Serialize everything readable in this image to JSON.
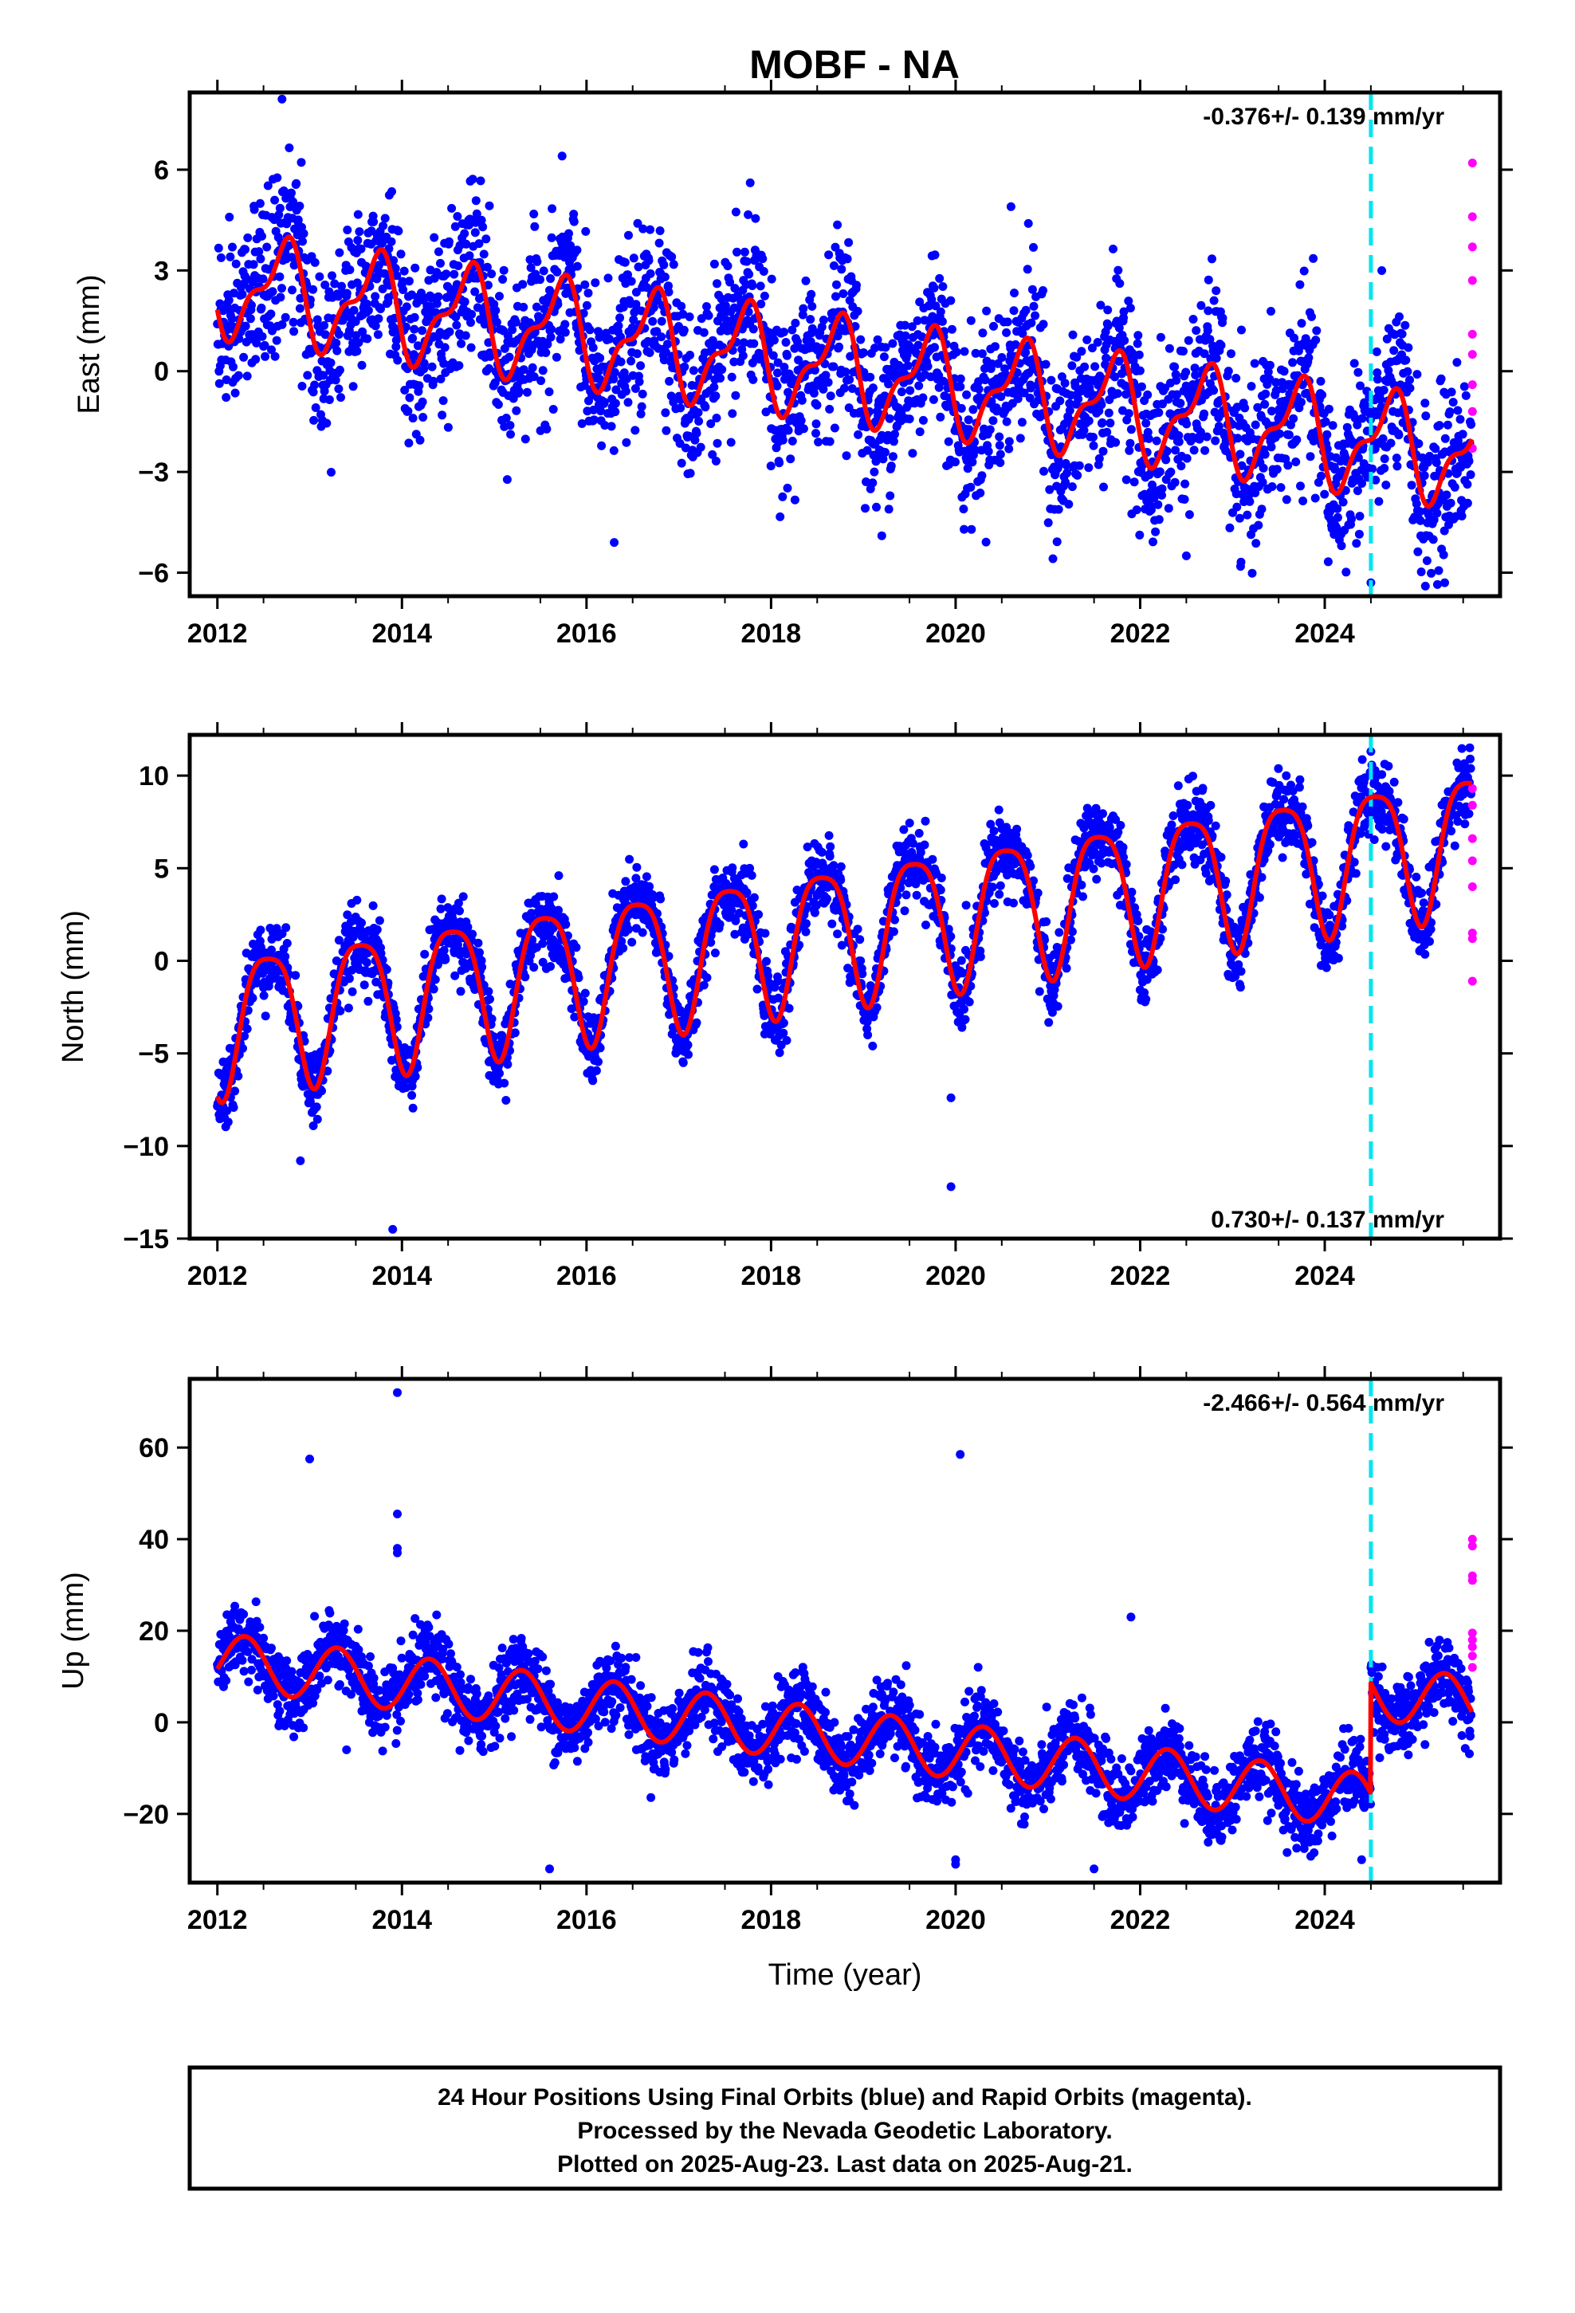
{
  "chart_data": [
    {
      "type": "scatter",
      "id": "east",
      "title": "MOBF - NA",
      "xlabel": "",
      "ylabel": "East (mm)",
      "xlim": [
        2011.7,
        2025.9
      ],
      "ylim": [
        -6.7,
        8.3
      ],
      "xticks": [
        2012,
        2014,
        2016,
        2018,
        2020,
        2022,
        2024
      ],
      "yticks": [
        -6,
        -3,
        0,
        3,
        6
      ],
      "rate_label": "-0.376+/- 0.139 mm/yr",
      "event_line_x": 2024.5,
      "model": {
        "trend": -0.376,
        "trend_ref": 2012.0,
        "offset": 2.6,
        "annual_amp": 1.35,
        "annual_phase": 2012.45,
        "semi_amp": 0.6,
        "semi_phase": 2012.2,
        "step": 0.0
      },
      "scatter_sd": 1.25,
      "outliers": [
        [
          2012.7,
          8.1
        ],
        [
          2016.3,
          -5.1
        ],
        [
          2019.2,
          -4.9
        ],
        [
          2020.6,
          4.9
        ],
        [
          2022.5,
          -5.5
        ],
        [
          2024.5,
          -6.3
        ],
        [
          2025.3,
          -6.3
        ]
      ],
      "rapid_points": [
        [
          2025.6,
          6.2
        ],
        [
          2025.6,
          4.6
        ],
        [
          2025.6,
          3.7
        ],
        [
          2025.6,
          2.7
        ],
        [
          2025.6,
          1.1
        ],
        [
          2025.6,
          0.5
        ],
        [
          2025.6,
          -0.4
        ],
        [
          2025.6,
          -1.2
        ],
        [
          2025.6,
          -2.3
        ]
      ],
      "label_position": "top-right"
    },
    {
      "type": "scatter",
      "id": "north",
      "title": "",
      "xlabel": "",
      "ylabel": "North (mm)",
      "xlim": [
        2011.7,
        2025.9
      ],
      "ylim": [
        -15,
        12.2
      ],
      "xticks": [
        2012,
        2014,
        2016,
        2018,
        2020,
        2022,
        2024
      ],
      "yticks": [
        -15,
        -10,
        -5,
        0,
        5,
        10
      ],
      "rate_label": "0.730+/- 0.137 mm/yr",
      "event_line_x": 2024.5,
      "model": {
        "trend": 0.73,
        "trend_ref": 2012.0,
        "offset": -3.2,
        "annual_amp": 3.7,
        "annual_phase": 2012.3,
        "semi_amp": 0.8,
        "semi_phase": 2012.18,
        "step": 0.0
      },
      "scatter_sd": 1.0,
      "outliers": [
        [
          2013.9,
          -14.5
        ],
        [
          2019.95,
          -12.2
        ],
        [
          2019.95,
          -7.4
        ],
        [
          2012.9,
          -10.8
        ],
        [
          2024.5,
          11.3
        ]
      ],
      "rapid_points": [
        [
          2025.6,
          9.3
        ],
        [
          2025.6,
          8.4
        ],
        [
          2025.6,
          6.6
        ],
        [
          2025.6,
          5.4
        ],
        [
          2025.6,
          4.0
        ],
        [
          2025.6,
          1.5
        ],
        [
          2025.6,
          1.2
        ],
        [
          2025.6,
          -1.1
        ]
      ],
      "label_position": "bottom-right"
    },
    {
      "type": "scatter",
      "id": "up",
      "title": "",
      "xlabel": "Time (year)",
      "ylabel": "Up (mm)",
      "xlim": [
        2011.7,
        2025.9
      ],
      "ylim": [
        -35,
        75
      ],
      "xticks": [
        2012,
        2014,
        2016,
        2018,
        2020,
        2022,
        2024
      ],
      "yticks": [
        -20,
        0,
        20,
        40,
        60
      ],
      "rate_label": "-2.466+/- 0.564 mm/yr",
      "event_line_x": 2024.5,
      "model": {
        "trend": -2.466,
        "trend_ref": 2012.0,
        "offset": 13.5,
        "annual_amp": 6.0,
        "annual_phase": 2012.05,
        "semi_amp": 0.0,
        "semi_phase": 2012.0,
        "step": 24.0
      },
      "scatter_sd": 4.0,
      "outliers": [
        [
          2013.0,
          57.5
        ],
        [
          2013.95,
          72.0
        ],
        [
          2013.95,
          45.5
        ],
        [
          2013.95,
          38.0
        ],
        [
          2013.95,
          37.0
        ],
        [
          2020.05,
          58.5
        ],
        [
          2015.6,
          -32.0
        ],
        [
          2020.0,
          -30.0
        ],
        [
          2020.0,
          -31.0
        ],
        [
          2024.4,
          -30.0
        ],
        [
          2021.5,
          -32.0
        ],
        [
          2021.9,
          23.0
        ],
        [
          2013.4,
          -6.0
        ]
      ],
      "rapid_points": [
        [
          2025.6,
          40.0
        ],
        [
          2025.6,
          38.5
        ],
        [
          2025.6,
          32.0
        ],
        [
          2025.6,
          31.0
        ],
        [
          2025.6,
          19.5
        ],
        [
          2025.6,
          18.0
        ],
        [
          2025.6,
          16.5
        ],
        [
          2025.6,
          14.5
        ],
        [
          2025.6,
          12.0
        ]
      ],
      "label_position": "top-right"
    }
  ],
  "footer": {
    "line1": "24 Hour Positions Using Final Orbits (blue) and Rapid Orbits (magenta).",
    "line2": "Processed by the Nevada Geodetic Laboratory.",
    "line3": "Plotted on 2025-Aug-23. Last data on 2025-Aug-21."
  },
  "colors": {
    "final_points": "#0000ff",
    "rapid_points": "#ff00ff",
    "model_line": "#ff0000",
    "event_line": "#00e5ee",
    "frame": "#000000"
  }
}
